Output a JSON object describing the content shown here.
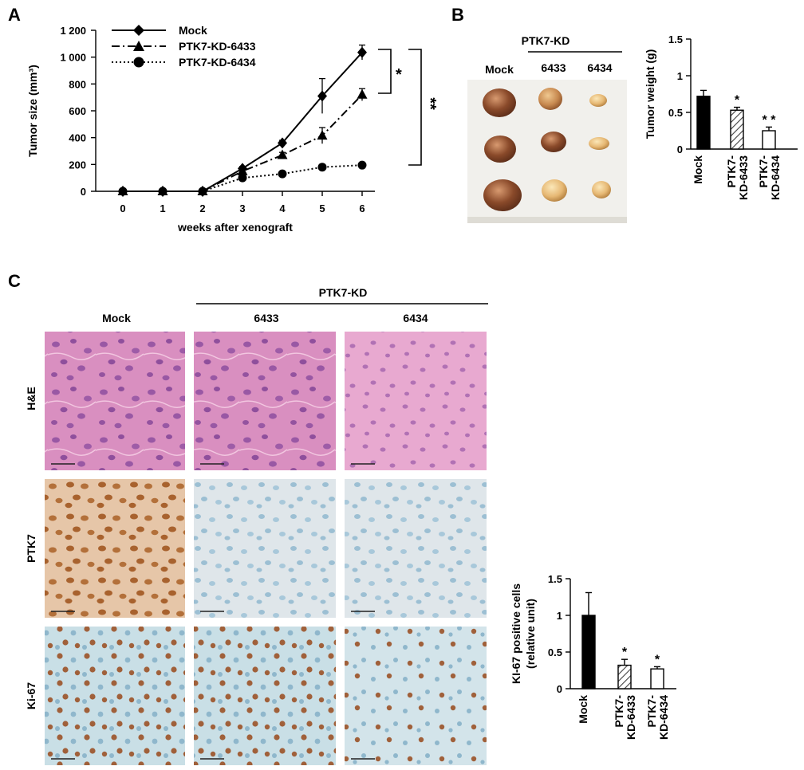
{
  "panels": {
    "a": "A",
    "b": "B",
    "c": "C"
  },
  "panel_b": {
    "group_header": "PTK7-KD",
    "col_mock": "Mock",
    "col_6433": "6433",
    "col_6434": "6434"
  },
  "panel_c": {
    "group_header": "PTK7-KD",
    "col_mock": "Mock",
    "col_6433": "6433",
    "col_6434": "6434",
    "rows": [
      "H&E",
      "PTK7",
      "Ki-67"
    ]
  },
  "colors": {
    "he_pink": "#d98fc0",
    "he_purple": "#8a4a9e",
    "ptk7_brown": "#b07040",
    "ki67_blue": "#9ec3d6",
    "tumor_dark": "#8a4a2a",
    "tumor_light": "#e0b070"
  },
  "chart_data": [
    {
      "type": "line",
      "ylabel": "Tumor size (mm³)",
      "xlabel": "weeks after xenograft",
      "x": [
        0,
        1,
        2,
        3,
        4,
        5,
        6
      ],
      "xticks": [
        "0",
        "1",
        "2",
        "3",
        "4",
        "5",
        "6"
      ],
      "ylim": [
        0,
        1200
      ],
      "yticks": [
        "0",
        "200",
        "400",
        "600",
        "800",
        "1 000",
        "1 200"
      ],
      "ytick_values": [
        0,
        200,
        400,
        600,
        800,
        1000,
        1200
      ],
      "legend": "top-left",
      "series": [
        {
          "name": "Mock",
          "marker": "diamond",
          "dash": "solid",
          "values": [
            0,
            0,
            0,
            170,
            360,
            710,
            1035
          ],
          "err": [
            0,
            0,
            0,
            15,
            20,
            130,
            55
          ]
        },
        {
          "name": "PTK7-KD-6433",
          "marker": "triangle",
          "dash": "dashdot",
          "values": [
            0,
            0,
            0,
            150,
            270,
            415,
            720
          ],
          "err": [
            0,
            0,
            0,
            15,
            20,
            60,
            45
          ]
        },
        {
          "name": "PTK7-KD-6434",
          "marker": "circle",
          "dash": "dotted",
          "values": [
            0,
            0,
            0,
            100,
            130,
            180,
            195
          ],
          "err": [
            0,
            0,
            0,
            10,
            10,
            10,
            10
          ]
        }
      ],
      "annotations": [
        "*",
        "**"
      ]
    },
    {
      "type": "bar",
      "ylabel": "Tumor weight (g)",
      "categories": [
        "Mock",
        "PTK7-KD-6433",
        "PTK7-KD-6434"
      ],
      "category_lines": [
        [
          "Mock"
        ],
        [
          "PTK7-",
          "KD-6433"
        ],
        [
          "PTK7-",
          "KD-6434"
        ]
      ],
      "values": [
        0.72,
        0.53,
        0.25
      ],
      "err": [
        0.08,
        0.04,
        0.05
      ],
      "fills": [
        "solid",
        "hatched",
        "white"
      ],
      "significance": [
        "",
        "*",
        "* *"
      ],
      "ylim": [
        0,
        1.5
      ],
      "yticks": [
        "0",
        "0.5",
        "1",
        "1.5"
      ],
      "ytick_values": [
        0,
        0.5,
        1,
        1.5
      ]
    },
    {
      "type": "bar",
      "ylabel_lines": [
        "KI-67 positive cells",
        "(relative unit)"
      ],
      "categories": [
        "Mock",
        "PTK7-KD-6433",
        "PTK7-KD-6434"
      ],
      "category_lines": [
        [
          "Mock"
        ],
        [
          "PTK7-",
          "KD-6433"
        ],
        [
          "PTK7-",
          "KD-6434"
        ]
      ],
      "values": [
        1.0,
        0.32,
        0.27
      ],
      "err": [
        0.31,
        0.08,
        0.03
      ],
      "fills": [
        "solid",
        "hatched",
        "white"
      ],
      "significance": [
        "",
        "*",
        "*"
      ],
      "ylim": [
        0,
        1.5
      ],
      "yticks": [
        "0",
        "0.5",
        "1",
        "1.5"
      ],
      "ytick_values": [
        0,
        0.5,
        1,
        1.5
      ]
    }
  ]
}
